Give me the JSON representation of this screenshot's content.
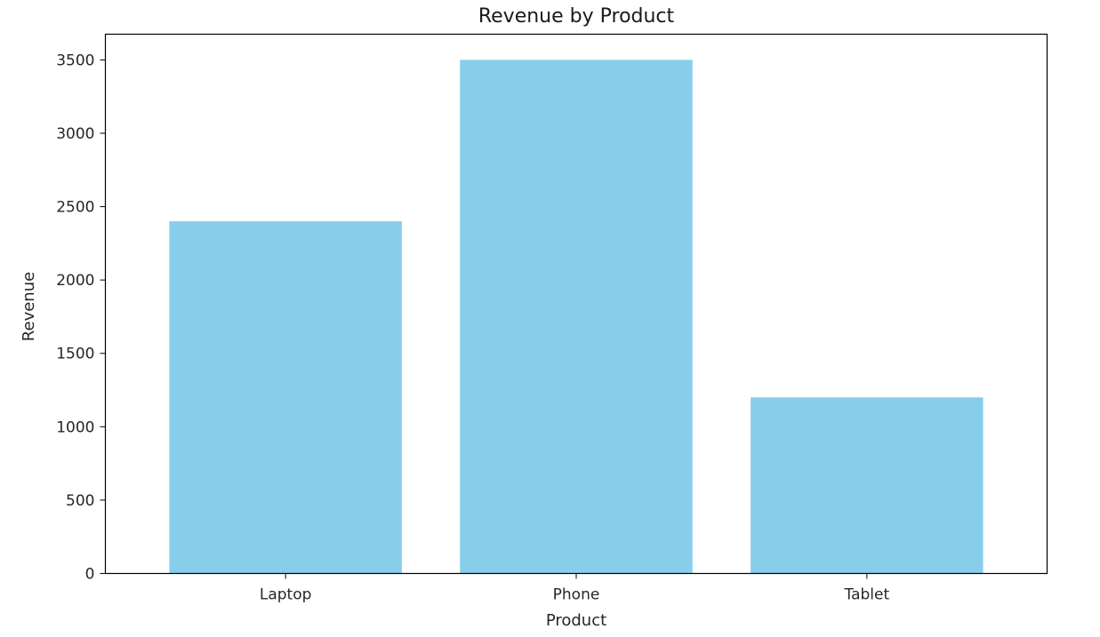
{
  "chart_data": {
    "type": "bar",
    "title": "Revenue by Product",
    "xlabel": "Product",
    "ylabel": "Revenue",
    "categories": [
      "Laptop",
      "Phone",
      "Tablet"
    ],
    "values": [
      2400,
      3500,
      1200
    ],
    "ylim": [
      0,
      3675
    ],
    "yticks": [
      0,
      500,
      1000,
      1500,
      2000,
      2500,
      3000,
      3500
    ],
    "bar_color": "#87ceeb",
    "grid": false,
    "legend": "none"
  }
}
